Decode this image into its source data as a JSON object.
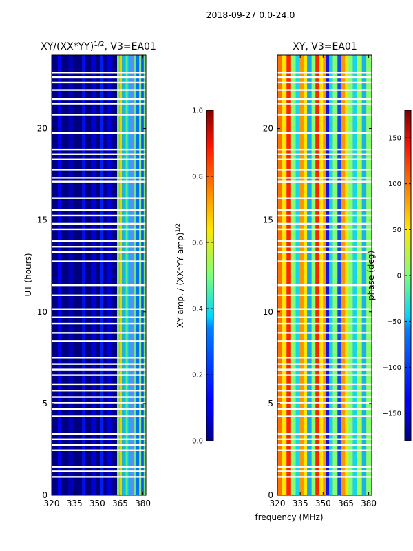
{
  "figure": {
    "suptitle": "2018-09-27 0.0-24.0",
    "shared_xlabel": "frequency (MHz)"
  },
  "chart_data": [
    {
      "type": "heatmap",
      "title": "XY/(XX*YY)",
      "title_exponent": "1/2",
      "title_suffix": ", V3=EA01",
      "ylabel": "UT (hours)",
      "xlim": [
        320,
        382
      ],
      "ylim": [
        0,
        24
      ],
      "xticks": [
        320,
        335,
        350,
        365,
        380
      ],
      "yticks": [
        0,
        5,
        10,
        15,
        20
      ],
      "colorbar": {
        "label": "XY amp. / (XX*YY amp)",
        "label_exponent": "1/2",
        "range": [
          0.0,
          1.0
        ],
        "ticks": [
          "0.0",
          "0.2",
          "0.4",
          "0.6",
          "0.8",
          "1.0"
        ],
        "tick_values": [
          0.0,
          0.2,
          0.4,
          0.6,
          0.8,
          1.0
        ],
        "colormap": "jet"
      }
    },
    {
      "type": "heatmap",
      "title": "XY, V3=EA01",
      "ylabel": "",
      "xlim": [
        320,
        382
      ],
      "ylim": [
        0,
        24
      ],
      "xticks": [
        320,
        335,
        350,
        365,
        380
      ],
      "yticks": [
        0,
        5,
        10,
        15,
        20
      ],
      "colorbar": {
        "label": "phase (deg)",
        "range": [
          -180,
          180
        ],
        "ticks": [
          "150",
          "100",
          "50",
          "0",
          "−50",
          "−100",
          "−150"
        ],
        "tick_values": [
          150,
          100,
          50,
          0,
          -50,
          -100,
          -150
        ],
        "colormap": "jet"
      }
    }
  ],
  "flagged_gaps_hours": [
    1.0,
    1.3,
    1.55,
    2.45,
    2.75,
    3.05,
    3.35,
    4.3,
    4.7,
    5.05,
    5.35,
    5.7,
    6.05,
    6.55,
    6.85,
    7.15,
    7.5,
    8.4,
    8.85,
    9.35,
    9.7,
    10.15,
    10.9,
    11.45,
    12.75,
    13.25,
    13.55,
    13.85,
    14.5,
    14.8,
    15.25,
    15.55,
    16.2,
    17.1,
    17.3,
    17.75,
    18.3,
    18.6,
    18.85,
    19.75,
    20.75,
    21.35,
    21.6,
    22.1,
    22.5,
    22.8,
    23.05
  ]
}
